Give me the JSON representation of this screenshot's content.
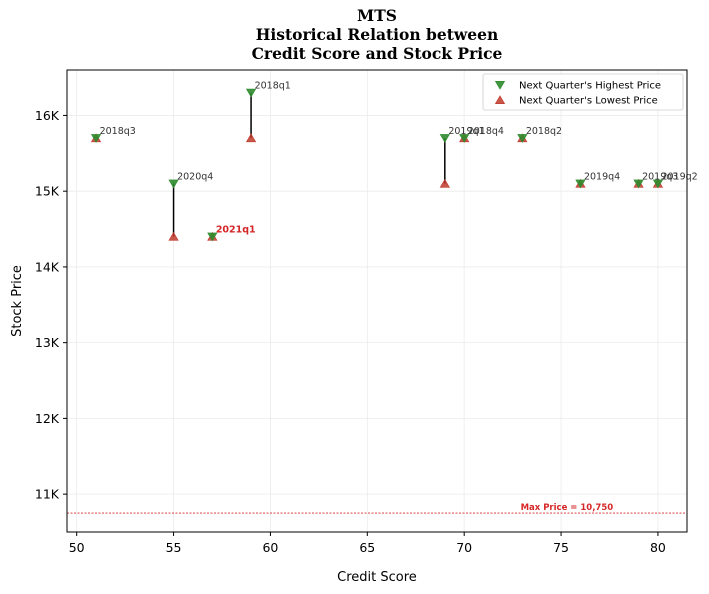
{
  "title": {
    "line1": "MTS",
    "line2": "Historical Relation between",
    "line3": "Credit Score and Stock Price"
  },
  "chart_data": {
    "type": "scatter",
    "xlabel": "Credit Score",
    "ylabel": "Stock Price",
    "xlim": [
      49.5,
      81.5
    ],
    "ylim": [
      10500,
      16600
    ],
    "x_ticks": [
      {
        "value": 50,
        "label": "50"
      },
      {
        "value": 55,
        "label": "55"
      },
      {
        "value": 60,
        "label": "60"
      },
      {
        "value": 65,
        "label": "65"
      },
      {
        "value": 70,
        "label": "70"
      },
      {
        "value": 75,
        "label": "75"
      },
      {
        "value": 80,
        "label": "80"
      }
    ],
    "y_ticks": [
      {
        "value": 11000,
        "label": "11K"
      },
      {
        "value": 12000,
        "label": "12K"
      },
      {
        "value": 13000,
        "label": "13K"
      },
      {
        "value": 14000,
        "label": "14K"
      },
      {
        "value": 15000,
        "label": "15K"
      },
      {
        "value": 16000,
        "label": "16K"
      }
    ],
    "grid": true,
    "legend": {
      "placement": "top-right",
      "entries": [
        {
          "name": "Next Quarter's Highest Price",
          "marker": "triangle-down",
          "color": "#2e8b2e"
        },
        {
          "name": "Next Quarter's Lowest Price",
          "marker": "triangle-up",
          "color": "#c0392b"
        }
      ]
    },
    "colors": {
      "high": "#2e8b2e",
      "low": "#c0392b",
      "connector": "#000000",
      "highlight": "#d62728",
      "reference": "#d62728"
    },
    "points": [
      {
        "label": "2018q3",
        "x": 51,
        "high": 15700,
        "low": 15700,
        "highlight": false
      },
      {
        "label": "2020q4",
        "x": 55,
        "high": 15100,
        "low": 14400,
        "highlight": false
      },
      {
        "label": "2021q1",
        "x": 57,
        "high": 14400,
        "low": 14400,
        "highlight": true
      },
      {
        "label": "2018q1",
        "x": 59,
        "high": 16300,
        "low": 15700,
        "highlight": false
      },
      {
        "label": "2019q1",
        "x": 69,
        "high": 15700,
        "low": 15100,
        "highlight": false
      },
      {
        "label": "2018q4",
        "x": 70,
        "high": 15700,
        "low": 15700,
        "highlight": false
      },
      {
        "label": "2018q2",
        "x": 73,
        "high": 15700,
        "low": 15700,
        "highlight": false
      },
      {
        "label": "2019q4",
        "x": 76,
        "high": 15100,
        "low": 15100,
        "highlight": false
      },
      {
        "label": "2019q3",
        "x": 79,
        "high": 15100,
        "low": 15100,
        "highlight": false
      },
      {
        "label": "2019q2",
        "x": 80,
        "high": 15100,
        "low": 15100,
        "highlight": false
      }
    ],
    "reference_line": {
      "value": 10750,
      "label": "Max Price = 10,750"
    }
  }
}
